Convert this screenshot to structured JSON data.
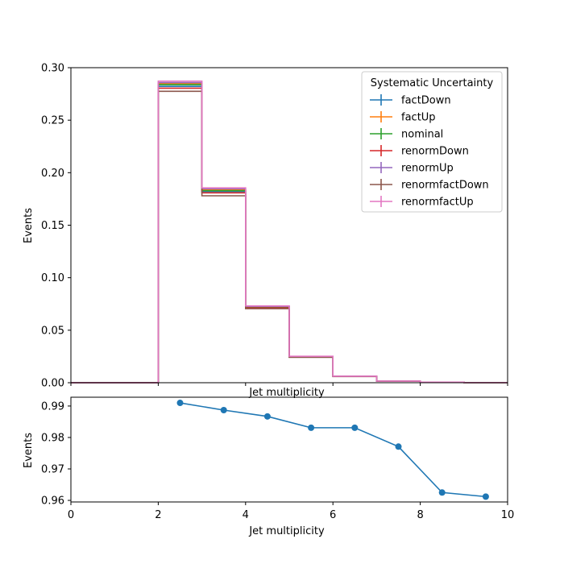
{
  "chart_data": [
    {
      "type": "step",
      "xlabel": "Jet multiplicity",
      "ylabel": "Events",
      "xlim": [
        0,
        10
      ],
      "ylim": [
        0,
        0.3
      ],
      "xticks": [
        "",
        "",
        "",
        "",
        "",
        ""
      ],
      "yticks": [
        "0.00",
        "0.05",
        "0.10",
        "0.15",
        "0.20",
        "0.25",
        "0.30"
      ],
      "bin_edges": [
        0,
        1,
        2,
        3,
        4,
        5,
        6,
        7,
        8,
        9,
        10
      ],
      "legend": {
        "title": "Systematic Uncertainty",
        "placement": "top-right"
      },
      "series": [
        {
          "name": "factDown",
          "color": "#1f77b4",
          "values": [
            0,
            0,
            0.2822,
            0.1822,
            0.0716,
            0.0245,
            0.006,
            0.0015,
            0.0005,
            0.0001
          ]
        },
        {
          "name": "factUp",
          "color": "#ff7f0e",
          "values": [
            0,
            0,
            0.2848,
            0.1836,
            0.0722,
            0.0248,
            0.0061,
            0.0016,
            0.0005,
            0.0001
          ]
        },
        {
          "name": "nominal",
          "color": "#2ca02c",
          "values": [
            0,
            0,
            0.2838,
            0.1829,
            0.0719,
            0.0247,
            0.0061,
            0.0016,
            0.0005,
            0.0001
          ]
        },
        {
          "name": "renormDown",
          "color": "#d62728",
          "values": [
            0,
            0,
            0.2805,
            0.1808,
            0.0712,
            0.0244,
            0.006,
            0.0015,
            0.0005,
            0.0001
          ]
        },
        {
          "name": "renormUp",
          "color": "#9467bd",
          "values": [
            0,
            0,
            0.2858,
            0.1848,
            0.0727,
            0.025,
            0.0062,
            0.0016,
            0.0005,
            0.0001
          ]
        },
        {
          "name": "renormfactDown",
          "color": "#8c564b",
          "values": [
            0,
            0,
            0.2775,
            0.178,
            0.0705,
            0.0242,
            0.0059,
            0.0015,
            0.0005,
            0.0001
          ]
        },
        {
          "name": "renormfactUp",
          "color": "#e377c2",
          "values": [
            0,
            0,
            0.2872,
            0.1855,
            0.0731,
            0.0252,
            0.0062,
            0.0016,
            0.0005,
            0.0001
          ]
        }
      ]
    },
    {
      "type": "line",
      "xlabel": "Jet multiplicity",
      "ylabel": "Events",
      "xlim": [
        0,
        10
      ],
      "ylim": [
        0.9595,
        0.9928
      ],
      "xticks": [
        "0",
        "2",
        "4",
        "6",
        "8",
        "10"
      ],
      "yticks": [
        "0.96",
        "0.97",
        "0.98",
        "0.99"
      ],
      "series": [
        {
          "color": "#1f77b4",
          "x": [
            2.5,
            3.5,
            4.5,
            5.5,
            6.5,
            7.5,
            8.5,
            9.5
          ],
          "y": [
            0.991,
            0.9887,
            0.9867,
            0.9831,
            0.9831,
            0.9771,
            0.9625,
            0.9612
          ]
        }
      ]
    }
  ]
}
